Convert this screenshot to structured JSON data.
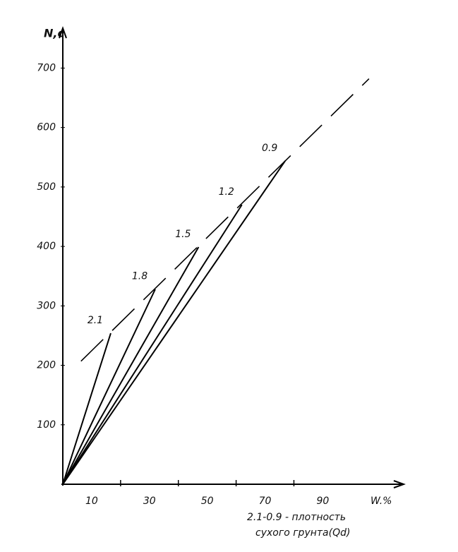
{
  "chart_data": {
    "type": "line",
    "ylabel": "N,c",
    "xlabel": "W.%",
    "caption": [
      "2.1-0.9 - плотность",
      "сухого грунта(Qd)"
    ],
    "xlim": [
      0,
      118
    ],
    "ylim": [
      0,
      767
    ],
    "xticks": [
      10,
      30,
      50,
      70,
      90
    ],
    "xminor": [
      20,
      40,
      60,
      80
    ],
    "yticks": [
      100,
      200,
      300,
      400,
      500,
      600,
      700
    ],
    "color": "#000000",
    "series": [
      {
        "name": "2.1",
        "x": [
          0,
          16.6
        ],
        "values": [
          0,
          254
        ]
      },
      {
        "name": "1.8",
        "x": [
          0,
          32
        ],
        "values": [
          0,
          328
        ]
      },
      {
        "name": "1.5",
        "x": [
          0,
          47
        ],
        "values": [
          0,
          399
        ]
      },
      {
        "name": "1.2",
        "x": [
          0,
          62
        ],
        "values": [
          0,
          470
        ]
      },
      {
        "name": "0.9",
        "x": [
          0,
          77
        ],
        "values": [
          0,
          544
        ]
      }
    ],
    "envelope": {
      "x": [
        6.3,
        106
      ],
      "values": [
        207,
        682
      ]
    }
  }
}
